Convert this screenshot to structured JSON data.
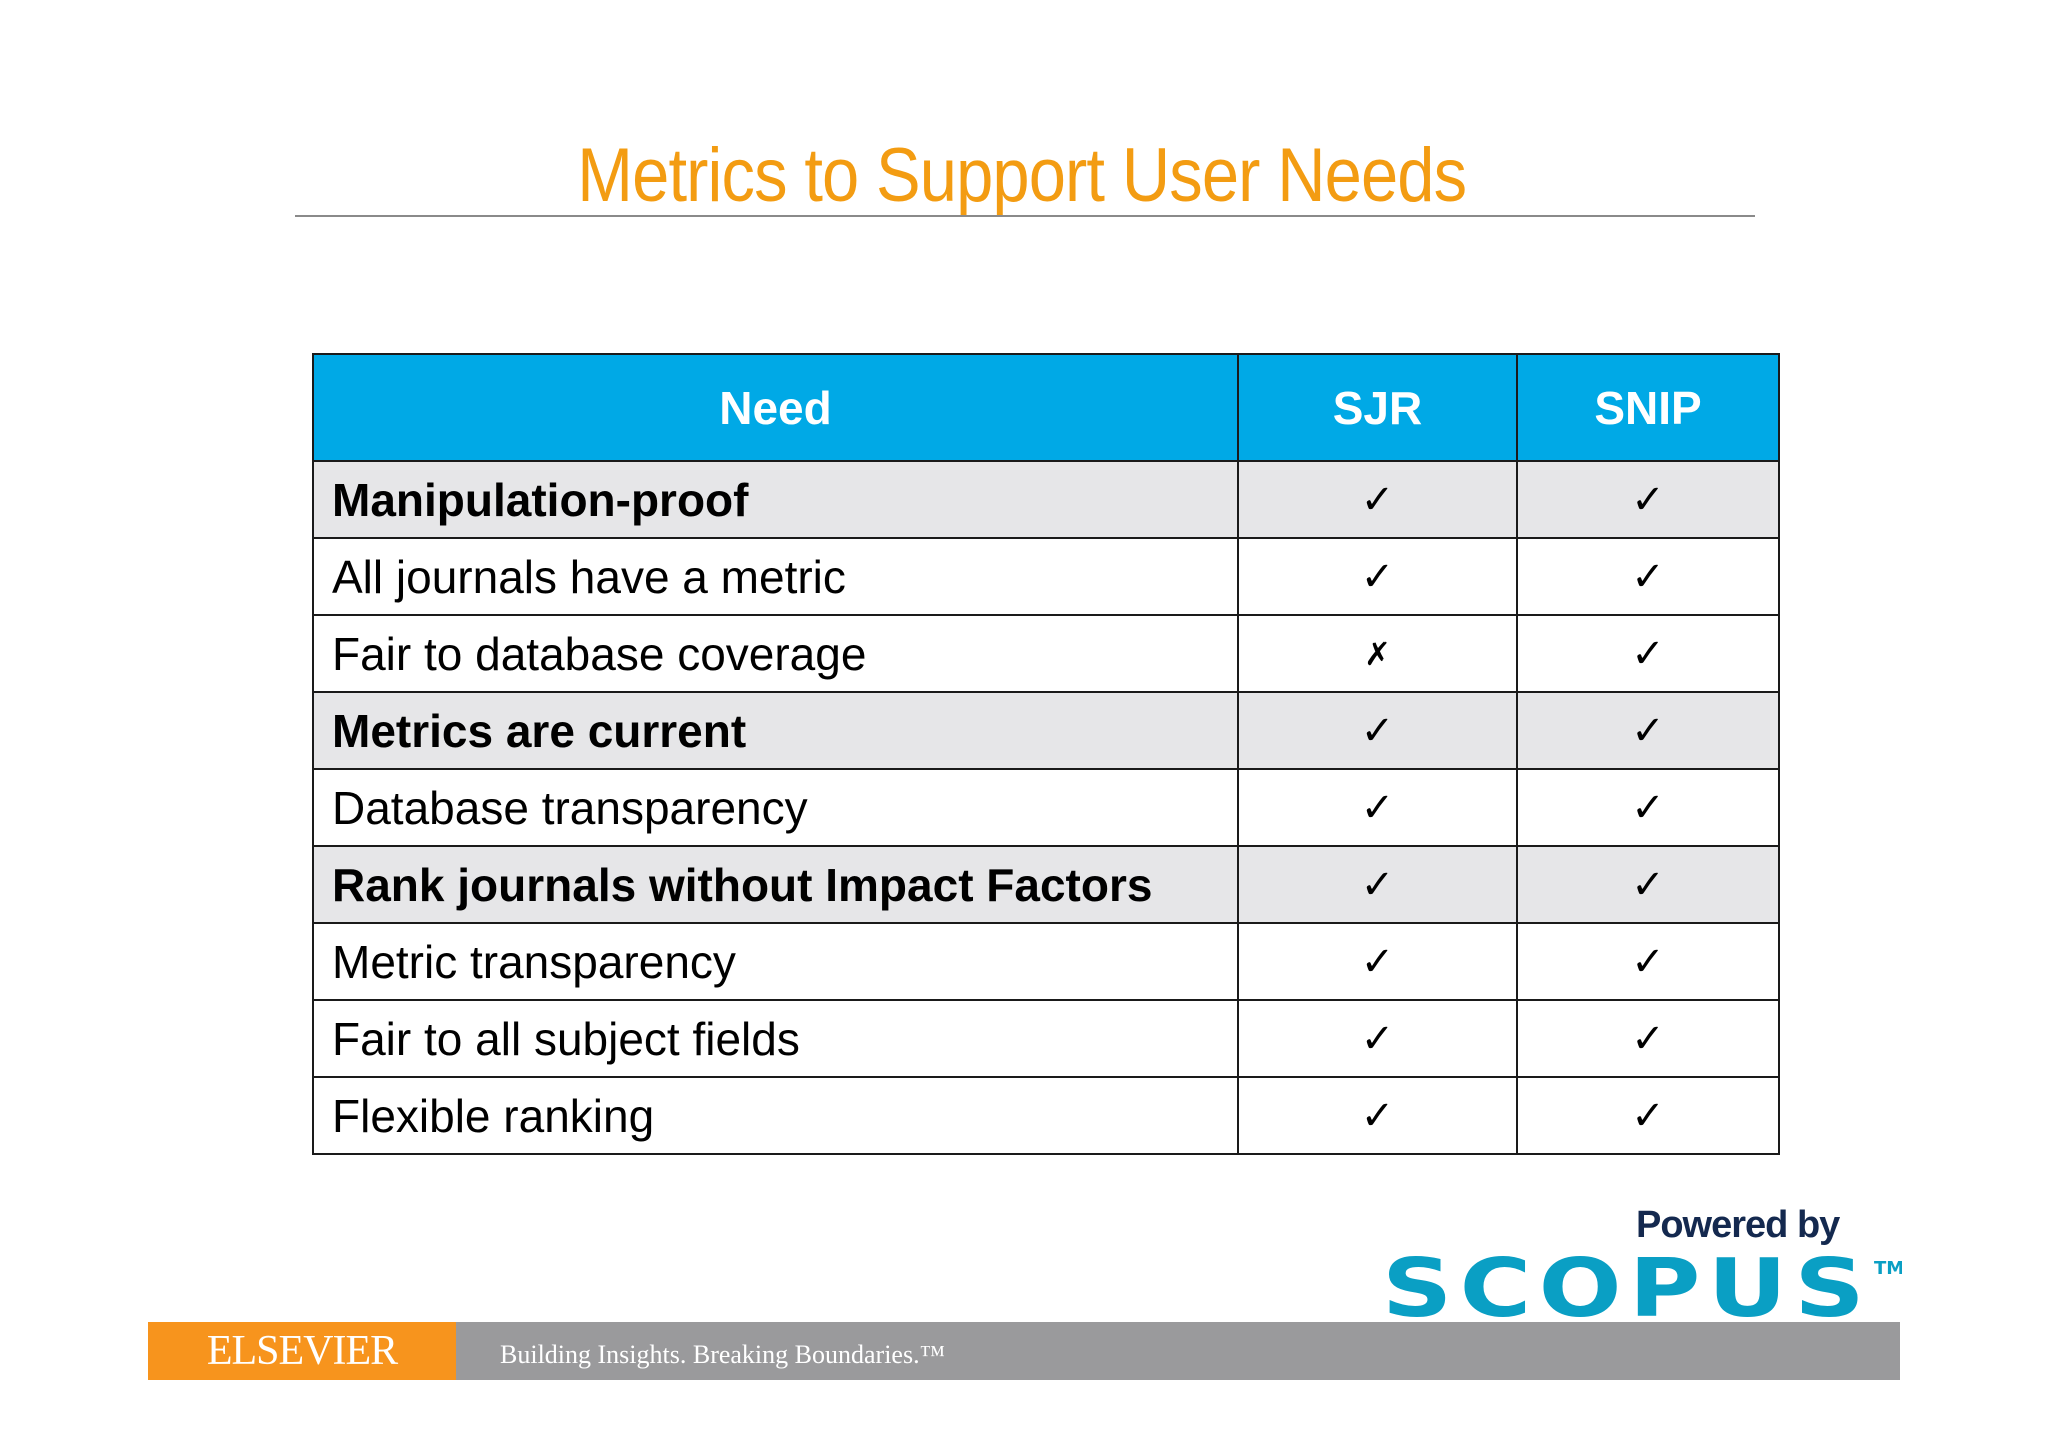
{
  "title": "Metrics to Support User Needs",
  "table": {
    "headers": [
      "Need",
      "SJR",
      "SNIP"
    ],
    "rows": [
      {
        "need": "Manipulation-proof",
        "sjr": "✓",
        "snip": "✓",
        "shaded": true,
        "bold": true
      },
      {
        "need": "All journals have a metric",
        "sjr": "✓",
        "snip": "✓",
        "shaded": false,
        "bold": false
      },
      {
        "need": "Fair to database coverage",
        "sjr": "✗",
        "snip": "✓",
        "shaded": false,
        "bold": false
      },
      {
        "need": "Metrics are current",
        "sjr": "✓",
        "snip": "✓",
        "shaded": true,
        "bold": true
      },
      {
        "need": "Database transparency",
        "sjr": "✓",
        "snip": "✓",
        "shaded": false,
        "bold": false
      },
      {
        "need": "Rank journals without Impact Factors",
        "sjr": "✓",
        "snip": "✓",
        "shaded": true,
        "bold": true
      },
      {
        "need": "Metric transparency",
        "sjr": "✓",
        "snip": "✓",
        "shaded": false,
        "bold": false
      },
      {
        "need": "Fair to all subject fields",
        "sjr": "✓",
        "snip": "✓",
        "shaded": false,
        "bold": false
      },
      {
        "need": "Flexible ranking",
        "sjr": "✓",
        "snip": "✓",
        "shaded": false,
        "bold": false
      }
    ]
  },
  "branding": {
    "powered_by": "Powered by",
    "scopus": "SCOPUS",
    "trademark": "TM",
    "publisher": "ELSEVIER",
    "tagline": "Building Insights. Breaking Boundaries.™"
  },
  "colors": {
    "title": "#f39c12",
    "header_bg": "#00a9e6",
    "shaded_row": "#e6e6e8",
    "scopus_blue": "#0a9fc4",
    "powered_by": "#14294f",
    "elsevier_orange": "#f7941d",
    "footer_gray": "#9a9a9c"
  }
}
